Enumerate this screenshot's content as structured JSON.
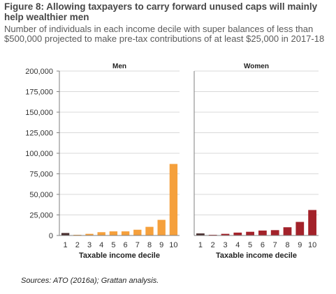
{
  "figure": {
    "title": "Figure 8: Allowing taxpayers to carry forward unused caps will mainly help wealthier men",
    "subtitle": "Number of individuals in each income decile with super balances of less than $500,000 projected to make pre-tax contributions of at least $25,000 in 2017-18",
    "source": "Sources: ATO (2016a); Grattan analysis."
  },
  "colors": {
    "men": "#f5a03c",
    "women": "#a3222a",
    "decile1": "#4a3030",
    "axis": "#7f7f7f",
    "grid": "#d9d9d9"
  },
  "chart_data": [
    {
      "type": "bar",
      "title": "Men",
      "xlabel": "Taxable income decile",
      "ylabel": "",
      "categories": [
        "1",
        "2",
        "3",
        "4",
        "5",
        "6",
        "7",
        "8",
        "9",
        "10"
      ],
      "values": [
        3000,
        500,
        2000,
        4000,
        5000,
        5000,
        7000,
        10500,
        19000,
        87000
      ],
      "ylim": [
        0,
        200000
      ],
      "yticks": [
        0,
        25000,
        50000,
        75000,
        100000,
        125000,
        150000,
        175000,
        200000
      ],
      "ytick_labels": [
        "0",
        "25,000",
        "50,000",
        "75,000",
        "100,000",
        "125,000",
        "150,000",
        "175,000",
        "200,000"
      ],
      "grid": true,
      "legend": "none"
    },
    {
      "type": "bar",
      "title": "Women",
      "xlabel": "Taxable income decile",
      "ylabel": "",
      "categories": [
        "1",
        "2",
        "3",
        "4",
        "5",
        "6",
        "7",
        "8",
        "9",
        "10"
      ],
      "values": [
        2500,
        500,
        2000,
        3500,
        4500,
        6000,
        6500,
        10000,
        16500,
        31000
      ],
      "ylim": [
        0,
        200000
      ],
      "yticks": [
        0,
        25000,
        50000,
        75000,
        100000,
        125000,
        150000,
        175000,
        200000
      ],
      "grid": true,
      "legend": "none"
    }
  ]
}
